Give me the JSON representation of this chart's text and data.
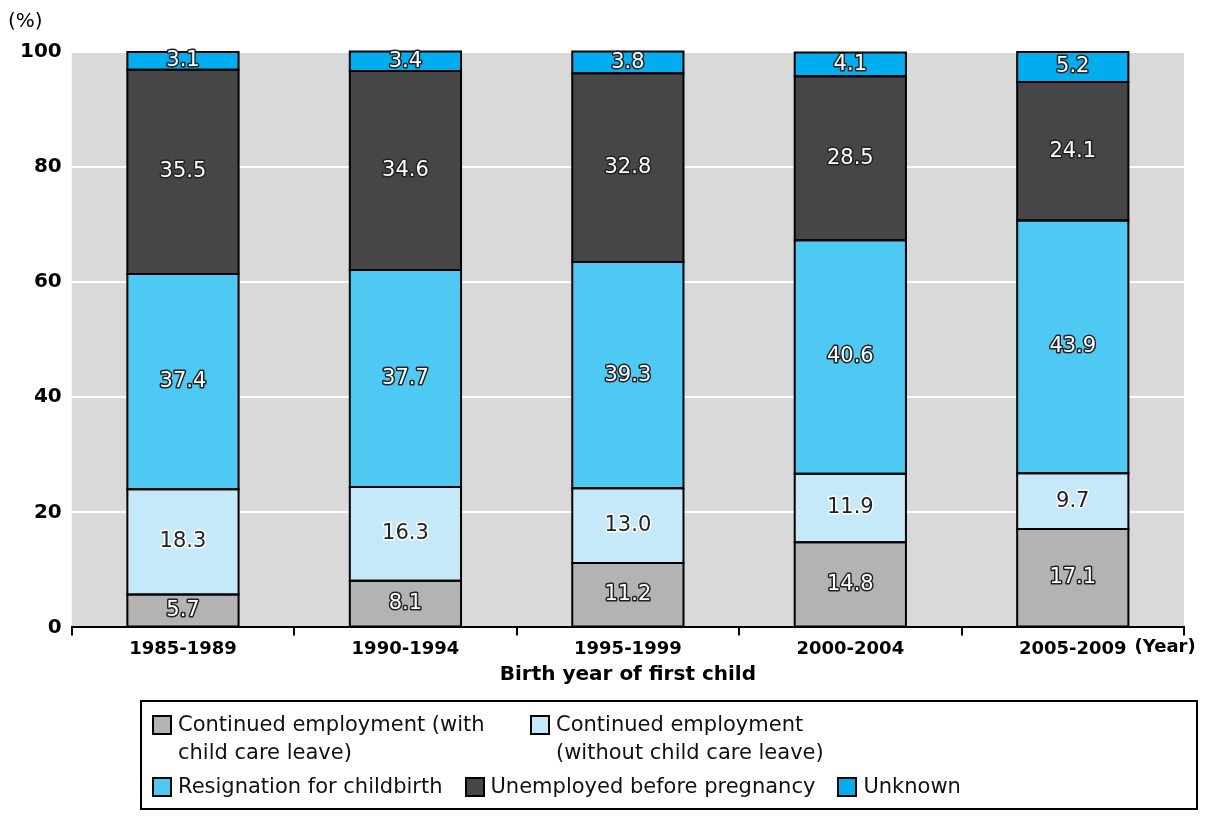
{
  "chart_data": {
    "type": "bar",
    "stacked": true,
    "ylabel": "(%)",
    "xlabel": "Birth year of first child",
    "annotations": [
      "(Year)"
    ],
    "categories": [
      "1985-1989",
      "1990-1994",
      "1995-1999",
      "2000-2004",
      "2005-2009"
    ],
    "series": [
      {
        "name": "Continued employment (with child care leave)",
        "color": "#b3b3b3",
        "values": [
          5.7,
          8.1,
          11.2,
          14.8,
          17.1
        ],
        "value_labels": [
          "5.7",
          "8.1",
          "11.2",
          "14.8",
          "17.1"
        ]
      },
      {
        "name": "Continued employment (without child care leave)",
        "color": "#c6e9f9",
        "values": [
          18.3,
          16.3,
          13.0,
          11.9,
          9.7
        ],
        "value_labels": [
          "18.3",
          "16.3",
          "13.0",
          "11.9",
          "9.7"
        ]
      },
      {
        "name": "Resignation for childbirth",
        "color": "#4dc9f4",
        "values": [
          37.4,
          37.7,
          39.3,
          40.6,
          43.9
        ],
        "value_labels": [
          "37.4",
          "37.7",
          "39.3",
          "40.6",
          "43.9"
        ]
      },
      {
        "name": "Unemployed before pregnancy",
        "color": "#464646",
        "values": [
          35.5,
          34.6,
          32.8,
          28.5,
          24.1
        ],
        "value_labels": [
          "35.5",
          "34.6",
          "32.8",
          "28.5",
          "24.1"
        ]
      },
      {
        "name": "Unknown",
        "color": "#00aeef",
        "values": [
          3.1,
          3.4,
          3.8,
          4.1,
          5.2
        ],
        "value_labels": [
          "3.1",
          "3.4",
          "3.8",
          "4.1",
          "5.2"
        ]
      }
    ],
    "data_labels": true,
    "ylim": [
      0,
      100
    ],
    "yticks": [
      0,
      20,
      40,
      60,
      80,
      100
    ],
    "grid": "y",
    "legend": "bottom"
  }
}
